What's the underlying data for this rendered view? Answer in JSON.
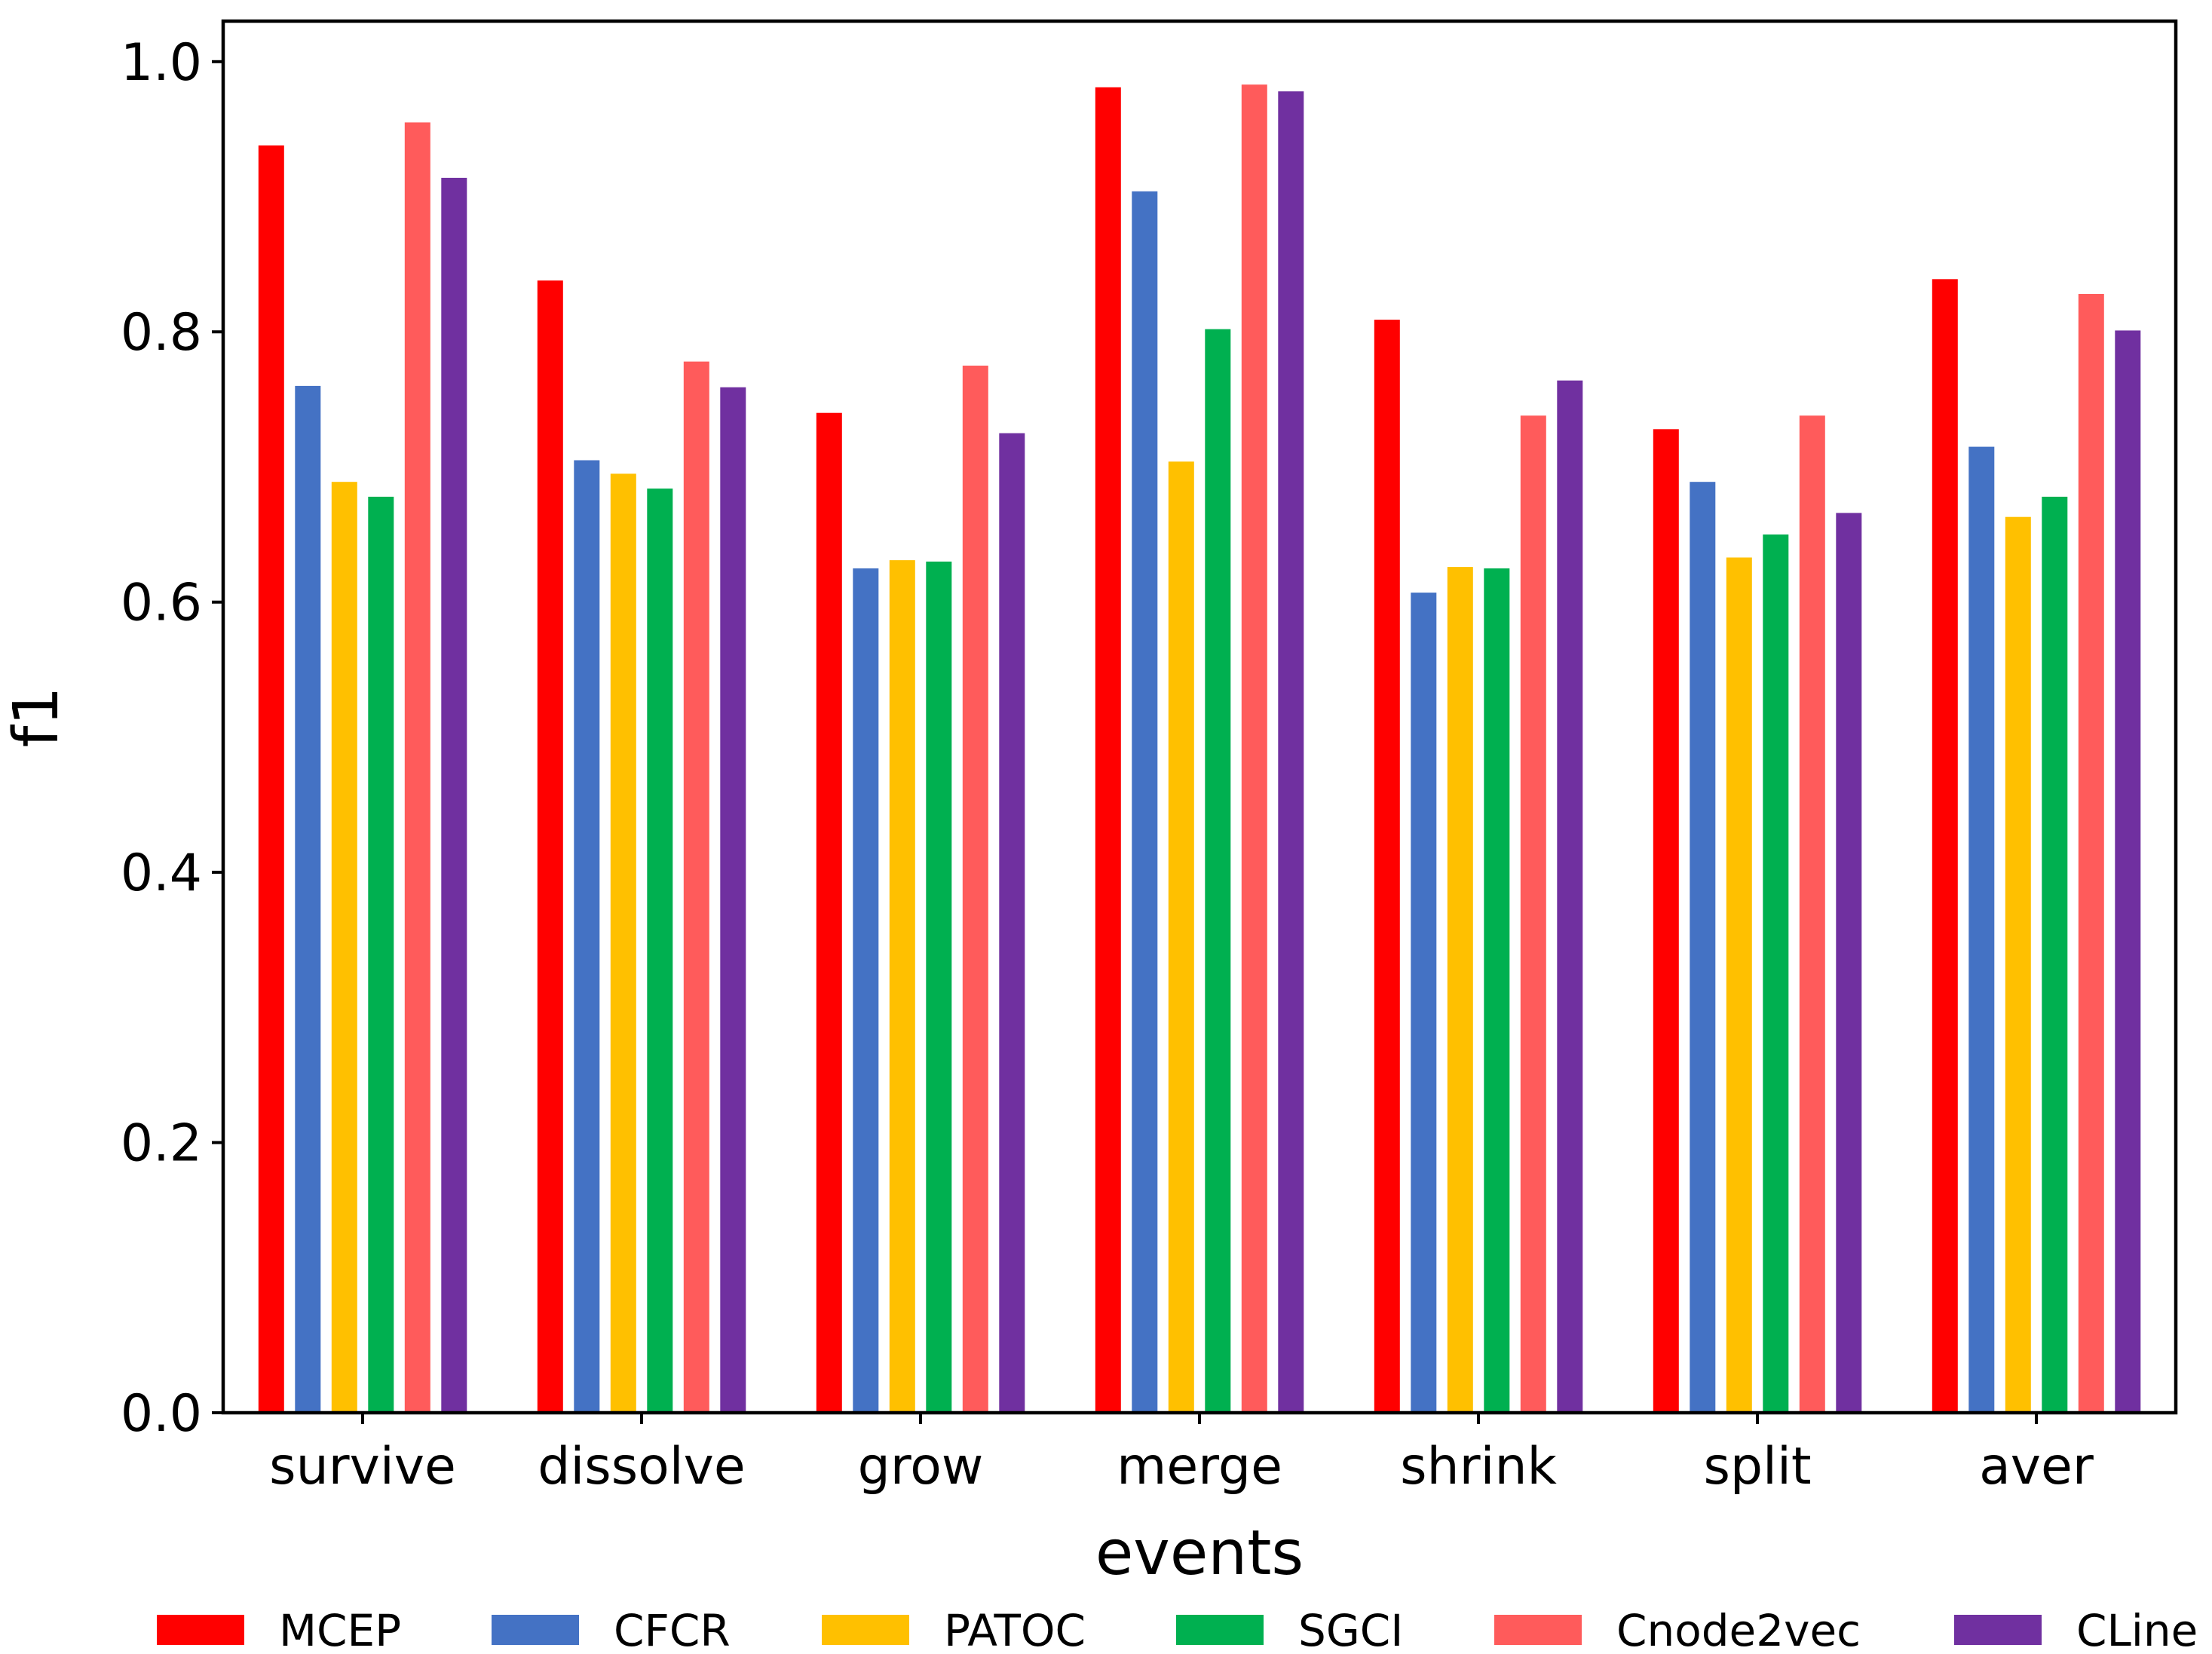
{
  "chart_data": {
    "type": "bar",
    "title": "",
    "xlabel": "events",
    "ylabel": "f1",
    "ylim": [
      0,
      1.03
    ],
    "yticks": [
      "0.0",
      "0.2",
      "0.4",
      "0.6",
      "0.8",
      "1.0"
    ],
    "grid": false,
    "legend_position": "bottom",
    "categories": [
      "survive",
      "dissolve",
      "grow",
      "merge",
      "shrink",
      "split",
      "aver"
    ],
    "series": [
      {
        "name": "MCEP",
        "color": "#ff0000",
        "values": [
          0.938,
          0.838,
          0.74,
          0.981,
          0.809,
          0.728,
          0.839
        ]
      },
      {
        "name": "CFCR",
        "color": "#4472c4",
        "values": [
          0.76,
          0.705,
          0.625,
          0.904,
          0.607,
          0.689,
          0.715
        ]
      },
      {
        "name": "PATOC",
        "color": "#ffc000",
        "values": [
          0.689,
          0.695,
          0.631,
          0.704,
          0.626,
          0.633,
          0.663
        ]
      },
      {
        "name": "SGCI",
        "color": "#00b050",
        "values": [
          0.678,
          0.684,
          0.63,
          0.802,
          0.625,
          0.65,
          0.678
        ]
      },
      {
        "name": "Cnode2vec",
        "color": "#ff5b5b",
        "values": [
          0.955,
          0.778,
          0.775,
          0.983,
          0.738,
          0.738,
          0.828
        ]
      },
      {
        "name": "CLine",
        "color": "#7030a0",
        "values": [
          0.914,
          0.759,
          0.725,
          0.978,
          0.764,
          0.666,
          0.801
        ]
      }
    ]
  }
}
